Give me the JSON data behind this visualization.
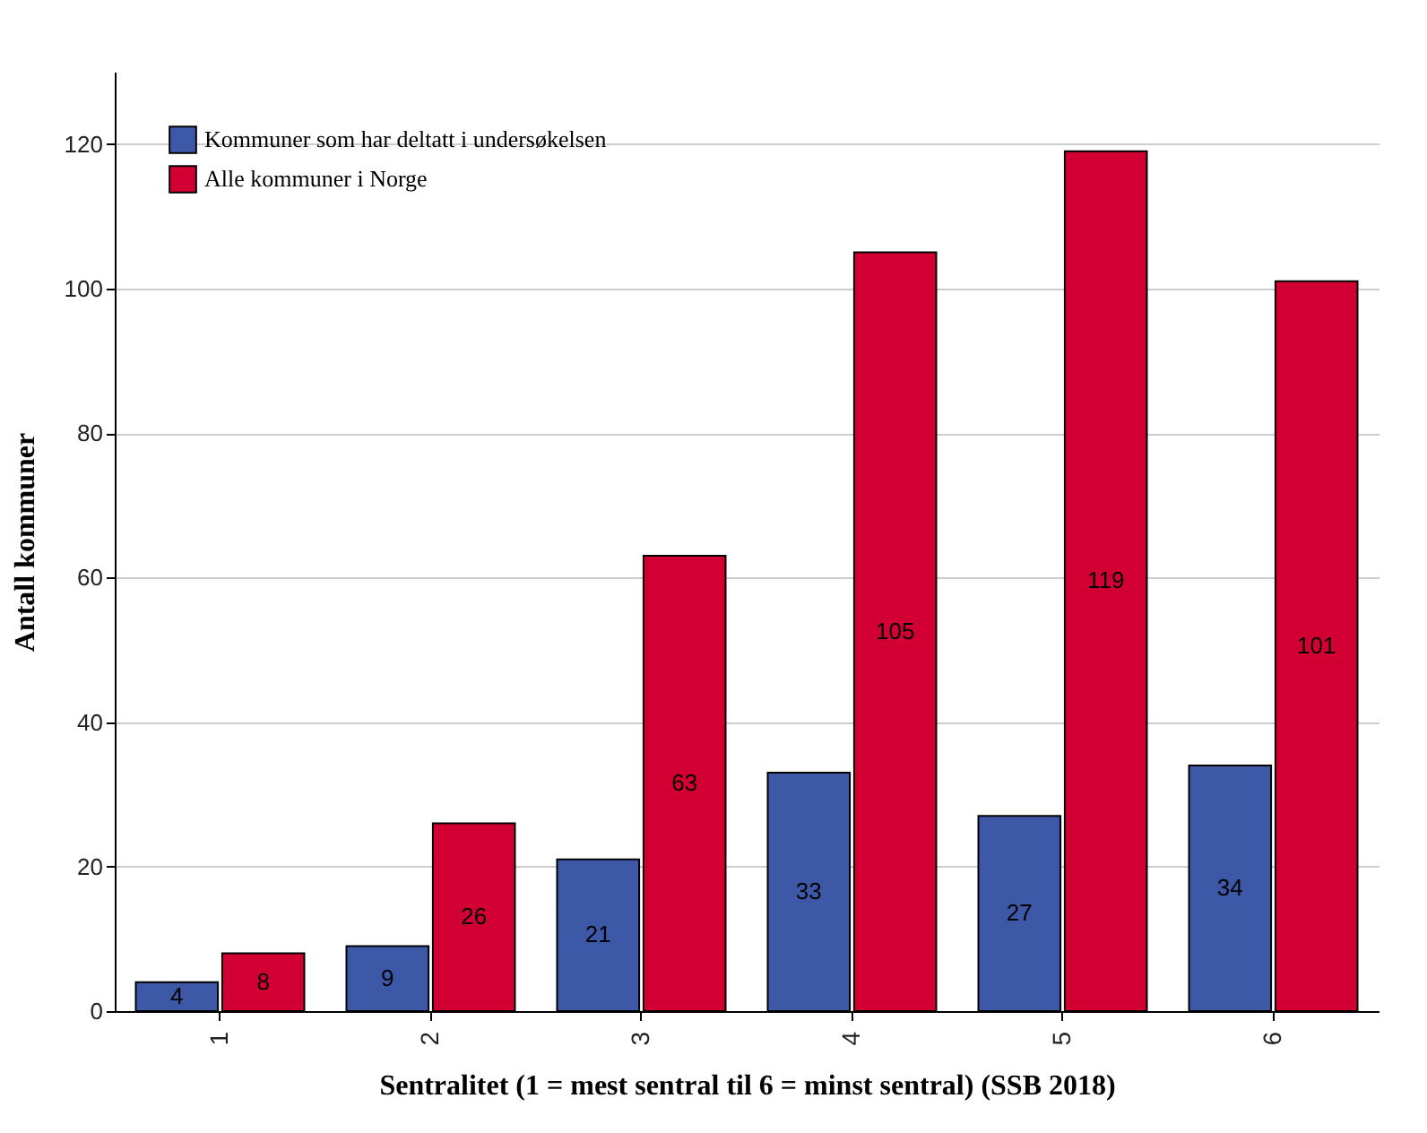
{
  "chart_data": {
    "type": "bar",
    "xlabel": "Sentralitet  (1 = mest sentral til 6 = minst sentral) (SSB 2018)",
    "ylabel": "Antall kommuner",
    "categories": [
      "1",
      "2",
      "3",
      "4",
      "5",
      "6"
    ],
    "series": [
      {
        "name": "Kommuner som har deltatt i undersøkelsen",
        "color": "#3e58a8",
        "values": [
          4,
          9,
          21,
          33,
          27,
          34
        ]
      },
      {
        "name": "Alle kommuner i Norge",
        "color": "#d20032",
        "values": [
          8,
          26,
          63,
          105,
          119,
          101
        ]
      }
    ],
    "ylim": [
      0,
      130
    ],
    "yticks": [
      0,
      20,
      40,
      60,
      80,
      100,
      120
    ],
    "grid": "y",
    "legend": "top left",
    "data_labels": true
  }
}
